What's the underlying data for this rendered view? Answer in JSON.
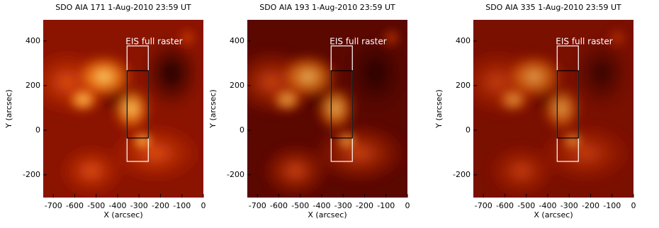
{
  "chart_data": [
    {
      "type": "image",
      "title": "SDO AIA 171 1-Aug-2010 23:59 UT",
      "xlabel": "X (arcsec)",
      "ylabel": "Y (arcsec)",
      "xlim": [
        -747,
        0
      ],
      "ylim": [
        -302,
        495
      ],
      "xticks": [
        -700,
        -600,
        -500,
        -400,
        -300,
        -200,
        -100,
        0
      ],
      "yticks": [
        -200,
        0,
        200,
        400
      ],
      "annotation": "EIS full raster",
      "raster_box": {
        "x": [
          -356,
          -257
        ],
        "y": [
          -140,
          378
        ]
      },
      "inner_box": {
        "x": [
          -356,
          -257
        ],
        "y": [
          -35,
          267
        ]
      }
    },
    {
      "type": "image",
      "title": "SDO AIA 193 1-Aug-2010 23:59 UT",
      "xlabel": "X (arcsec)",
      "ylabel": "Y (arcsec)",
      "xlim": [
        -747,
        0
      ],
      "ylim": [
        -302,
        495
      ],
      "xticks": [
        -700,
        -600,
        -500,
        -400,
        -300,
        -200,
        -100,
        0
      ],
      "yticks": [
        -200,
        0,
        200,
        400
      ],
      "annotation": "EIS full raster",
      "raster_box": {
        "x": [
          -356,
          -257
        ],
        "y": [
          -140,
          378
        ]
      },
      "inner_box": {
        "x": [
          -356,
          -257
        ],
        "y": [
          -35,
          267
        ]
      }
    },
    {
      "type": "image",
      "title": "SDO AIA 335 1-Aug-2010 23:59 UT",
      "xlabel": "X (arcsec)",
      "ylabel": "Y (arcsec)",
      "xlim": [
        -747,
        0
      ],
      "ylim": [
        -302,
        495
      ],
      "xticks": [
        -700,
        -600,
        -500,
        -400,
        -300,
        -200,
        -100,
        0
      ],
      "yticks": [
        -200,
        0,
        200,
        400
      ],
      "annotation": "EIS full raster",
      "raster_box": {
        "x": [
          -356,
          -257
        ],
        "y": [
          -140,
          378
        ]
      },
      "inner_box": {
        "x": [
          -356,
          -257
        ],
        "y": [
          -35,
          267
        ]
      }
    }
  ]
}
